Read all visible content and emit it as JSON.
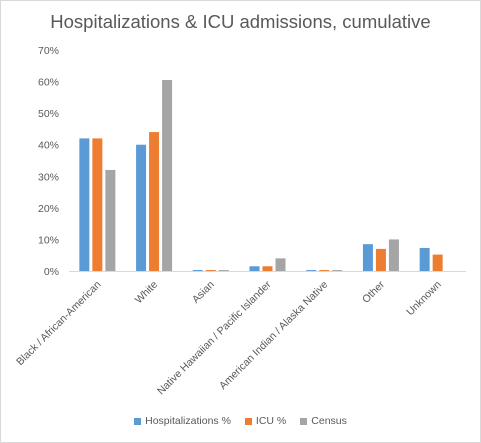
{
  "chart_data": {
    "type": "bar",
    "title": "Hospitalizations & ICU admissions, cumulative",
    "xlabel": "",
    "ylabel": "",
    "ylim": [
      0,
      70
    ],
    "y_ticks": [
      "0%",
      "10%",
      "20%",
      "30%",
      "40%",
      "50%",
      "60%",
      "70%"
    ],
    "grid": false,
    "legend_position": "bottom",
    "categories": [
      "Black / African-American",
      "White",
      "Asian",
      "Native Hawaiian / Pacific Islander",
      "American Indian / Alaska Native",
      "Other",
      "Unknown"
    ],
    "series": [
      {
        "name": "Hospitalizations %",
        "color": "#5b9bd5",
        "values": [
          42,
          40,
          0.3,
          1.5,
          0.3,
          8.5,
          7.3
        ]
      },
      {
        "name": "ICU %",
        "color": "#ed7d31",
        "values": [
          42,
          44,
          0.3,
          1.5,
          0.3,
          7,
          5.2
        ]
      },
      {
        "name": "Census",
        "color": "#a5a5a5",
        "values": [
          32,
          60.5,
          0.3,
          4,
          0.3,
          10,
          null
        ]
      }
    ]
  }
}
